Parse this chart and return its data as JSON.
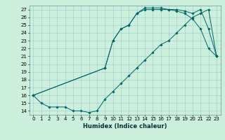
{
  "xlabel": "Humidex (Indice chaleur)",
  "bg_color": "#cceedd",
  "grid_color": "#99cccc",
  "line_color": "#006666",
  "xlim": [
    -0.5,
    23.5
  ],
  "ylim": [
    13.5,
    27.5
  ],
  "xticks": [
    0,
    1,
    2,
    3,
    4,
    5,
    6,
    7,
    8,
    9,
    10,
    11,
    12,
    13,
    14,
    15,
    16,
    17,
    18,
    19,
    20,
    21,
    22,
    23
  ],
  "yticks": [
    14,
    15,
    16,
    17,
    18,
    19,
    20,
    21,
    22,
    23,
    24,
    25,
    26,
    27
  ],
  "line1_x": [
    0,
    1,
    2,
    3,
    4,
    5,
    6,
    7,
    8,
    9,
    10,
    11,
    12,
    13,
    14,
    15,
    16,
    17,
    18,
    19,
    20,
    21,
    22,
    23
  ],
  "line1_y": [
    16,
    15,
    14.5,
    14.5,
    14.5,
    14,
    14,
    13.8,
    14,
    15.5,
    16.5,
    17.5,
    18.5,
    19.5,
    20.5,
    21.5,
    22.5,
    23,
    24,
    25,
    26,
    26.5,
    27,
    21
  ],
  "line2_x": [
    0,
    9,
    10,
    11,
    12,
    13,
    14,
    15,
    16,
    17,
    18,
    19,
    20,
    21,
    22,
    23
  ],
  "line2_y": [
    16,
    19.5,
    23,
    24.5,
    25,
    26.5,
    27,
    27,
    27,
    27,
    26.8,
    26.5,
    25.8,
    24.5,
    22,
    21
  ],
  "line3_x": [
    0,
    9,
    10,
    11,
    12,
    13,
    14,
    15,
    16,
    17,
    18,
    19,
    20,
    21,
    22,
    23
  ],
  "line3_y": [
    16,
    19.5,
    23,
    24.5,
    25,
    26.5,
    27.2,
    27.2,
    27.2,
    27,
    27,
    26.8,
    26.5,
    27,
    24.5,
    21
  ],
  "xlabel_fontsize": 6,
  "tick_fontsize": 5,
  "linewidth": 0.7,
  "markersize": 1.8
}
